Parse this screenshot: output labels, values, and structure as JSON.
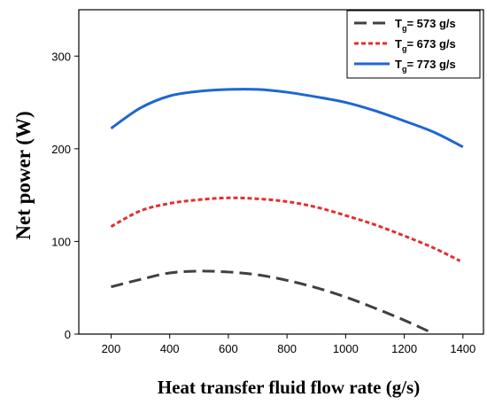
{
  "chart_data": {
    "type": "line",
    "xlabel": "Heat transfer fluid flow rate (g/s)",
    "ylabel": "Net power (W)",
    "xlim": [
      90,
      1470
    ],
    "ylim": [
      0,
      350
    ],
    "xticks": [
      200,
      400,
      600,
      800,
      1000,
      1200,
      1400
    ],
    "yticks": [
      0,
      100,
      200,
      300
    ],
    "grid": false,
    "legend_position": "top-right",
    "series": [
      {
        "legend_main": "T",
        "legend_sub": "g",
        "legend_rest": "= 573 g/s",
        "color": "#404040",
        "style": "dashed",
        "x": [
          200,
          300,
          400,
          500,
          600,
          700,
          800,
          900,
          1000,
          1100,
          1200,
          1290
        ],
        "y": [
          51,
          59,
          66,
          68,
          67,
          64,
          58,
          50,
          40,
          28,
          15,
          2
        ]
      },
      {
        "legend_main": "T",
        "legend_sub": "g",
        "legend_rest": "= 673 g/s",
        "color": "#e03030",
        "style": "dotted",
        "x": [
          200,
          300,
          400,
          500,
          600,
          700,
          800,
          900,
          1000,
          1100,
          1200,
          1300,
          1390
        ],
        "y": [
          116,
          133,
          141,
          145,
          147,
          146,
          143,
          137,
          128,
          118,
          106,
          93,
          79
        ]
      },
      {
        "legend_main": "T",
        "legend_sub": "g",
        "legend_rest": "= 773 g/s",
        "color": "#1e66d4",
        "style": "solid",
        "x": [
          200,
          300,
          400,
          500,
          600,
          700,
          800,
          900,
          1000,
          1100,
          1200,
          1300,
          1400
        ],
        "y": [
          222,
          244,
          257,
          262,
          264,
          264,
          261,
          256,
          250,
          241,
          230,
          218,
          202
        ]
      }
    ]
  }
}
